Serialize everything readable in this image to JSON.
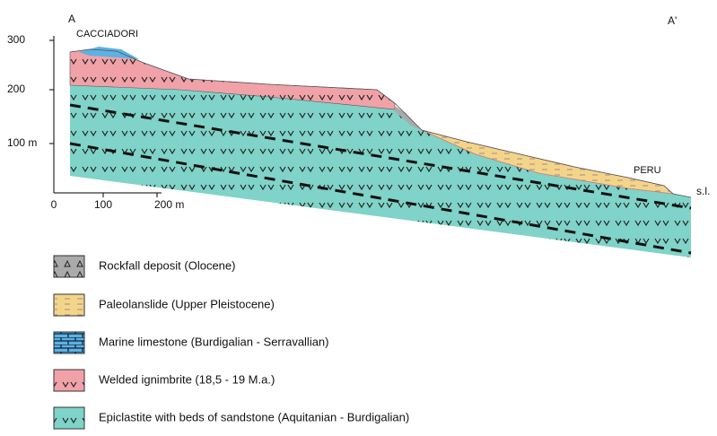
{
  "section": {
    "start_label": "A",
    "end_label": "A'",
    "places": [
      "CACCIADORI",
      "PERU"
    ],
    "sea_level": "s.l."
  },
  "scale": {
    "vertical": [
      "300",
      "200",
      "100 m"
    ],
    "horizontal": [
      "0",
      "100",
      "200 m"
    ]
  },
  "legend": [
    "Rockfall deposit (Olocene)",
    "Paleolanslide (Upper Pleistocene)",
    "Marine limestone  (Burdigalian - Serravallian)",
    "Welded ignimbrite (18,5 - 19 M.a.)",
    "Epiclastite with beds of sandstone (Aquitanian - Burdigalian)"
  ]
}
